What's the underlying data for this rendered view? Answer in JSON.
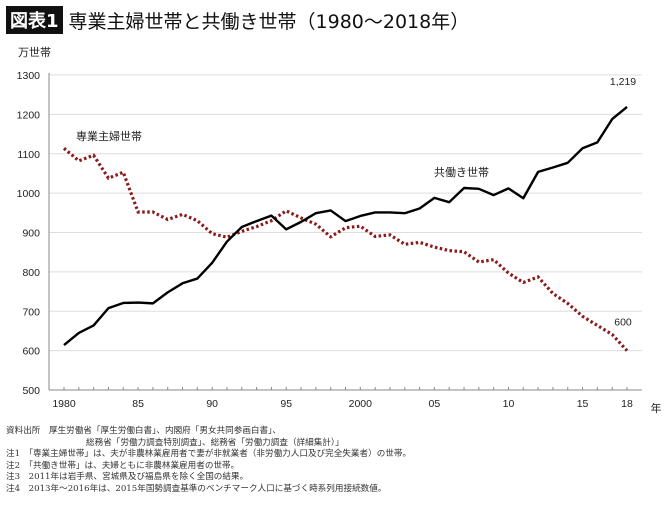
{
  "title": {
    "badge": "図表1",
    "text": "専業主婦世帯と共働き世帯（1980〜2018年）"
  },
  "chart_data": {
    "type": "line",
    "title": "専業主婦世帯と共働き世帯（1980〜2018年）",
    "ylabel": "万世帯",
    "xlabel": "年",
    "ylim": [
      500,
      1300
    ],
    "yticks": [
      500,
      600,
      700,
      800,
      900,
      1000,
      1100,
      1200,
      1300
    ],
    "xlim": [
      1980,
      2018
    ],
    "xtick_labels": [
      {
        "x": 1980,
        "label": "1980"
      },
      {
        "x": 1985,
        "label": "85"
      },
      {
        "x": 1990,
        "label": "90"
      },
      {
        "x": 1995,
        "label": "95"
      },
      {
        "x": 2000,
        "label": "2000"
      },
      {
        "x": 2005,
        "label": "05"
      },
      {
        "x": 2010,
        "label": "10"
      },
      {
        "x": 2015,
        "label": "15"
      },
      {
        "x": 2018,
        "label": "18"
      }
    ],
    "grid": "horizontal",
    "x": [
      1980,
      1981,
      1982,
      1983,
      1984,
      1985,
      1986,
      1987,
      1988,
      1989,
      1990,
      1991,
      1992,
      1993,
      1994,
      1995,
      1996,
      1997,
      1998,
      1999,
      2000,
      2001,
      2002,
      2003,
      2004,
      2005,
      2006,
      2007,
      2008,
      2009,
      2010,
      2011,
      2012,
      2013,
      2014,
      2015,
      2016,
      2017,
      2018
    ],
    "series": [
      {
        "name": "専業主婦世帯",
        "style": "dotted",
        "color": "#8b1a1a",
        "values": [
          1114,
          1082,
          1096,
          1038,
          1053,
          952,
          952,
          933,
          946,
          930,
          897,
          888,
          903,
          915,
          930,
          955,
          937,
          921,
          889,
          912,
          916,
          890,
          894,
          870,
          875,
          863,
          854,
          851,
          825,
          831,
          797,
          773,
          787,
          745,
          720,
          687,
          664,
          641,
          600
        ],
        "end_label": "600"
      },
      {
        "name": "共働き世帯",
        "style": "solid",
        "color": "#000000",
        "values": [
          614,
          645,
          664,
          708,
          721,
          722,
          720,
          748,
          771,
          783,
          823,
          877,
          914,
          929,
          943,
          908,
          927,
          949,
          956,
          929,
          942,
          951,
          951,
          949,
          961,
          988,
          977,
          1013,
          1011,
          995,
          1012,
          987,
          1054,
          1065,
          1077,
          1114,
          1129,
          1188,
          1219
        ],
        "end_label": "1,219"
      }
    ]
  },
  "notes": [
    "資料出所　厚生労働省「厚生労働白書」、内閣府「男女共同参画白書」、",
    "総務省「労働力調査特別調査」、総務省「労働力調査（詳細集計）」",
    "注1　「専業主婦世帯」は、夫が非農林業雇用者で妻が非就業者（非労働力人口及び完全失業者）の世帯。",
    "注2　「共働き世帯」は、夫婦ともに非農林業雇用者の世帯。",
    "注3　2011年は岩手県、宮城県及び福島県を除く全国の結果。",
    "注4　2013年〜2016年は、2015年国勢調査基準のベンチマーク人口に基づく時系列用接続数値。"
  ]
}
